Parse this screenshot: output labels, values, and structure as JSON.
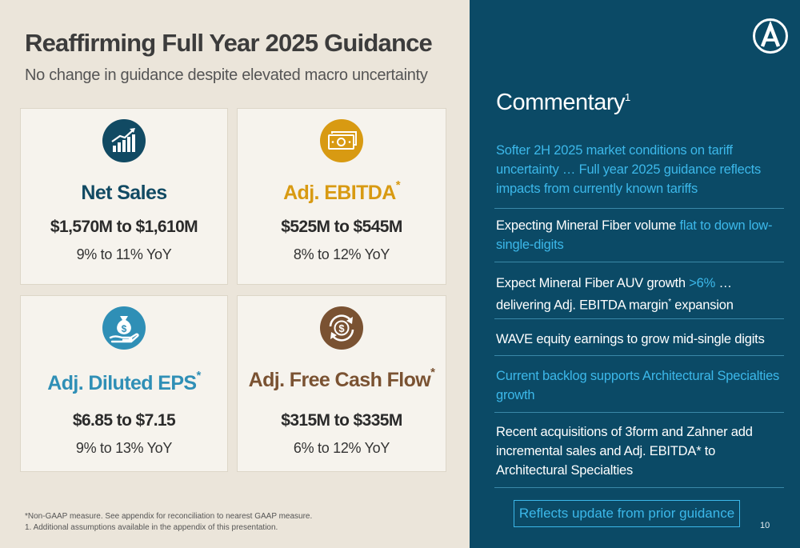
{
  "header": {
    "title": "Reaffirming Full Year 2025 Guidance",
    "subtitle": "No change in guidance despite elevated macro uncertainty"
  },
  "cards": [
    {
      "label": "Net Sales",
      "marker": "",
      "value": "$1,570M to $1,610M",
      "yoy": "9% to 11% YoY",
      "icon": "growth-chart-icon",
      "color": "#114a63"
    },
    {
      "label": "Adj. EBITDA",
      "marker": "*",
      "value": "$525M to $545M",
      "yoy": "8% to 12% YoY",
      "icon": "cash-stack-icon",
      "color": "#d89a12"
    },
    {
      "label": "Adj. Diluted EPS",
      "marker": "*",
      "value": "$6.85 to $7.15",
      "yoy": "9% to 13% YoY",
      "icon": "money-bag-hand-icon",
      "color": "#2f8fb6"
    },
    {
      "label": "Adj. Free Cash Flow",
      "marker": "*",
      "value": "$315M to $335M",
      "yoy": "6% to 12% YoY",
      "icon": "dollar-cycle-icon",
      "color": "#7a5232"
    }
  ],
  "footnotes": [
    "*Non-GAAP measure. See appendix for reconciliation to nearest GAAP measure.",
    "1. Additional assumptions available in the appendix of this presentation."
  ],
  "commentary": {
    "title": "Commentary",
    "title_marker": "1",
    "bullets": [
      {
        "parts": [
          {
            "text": "Softer 2H 2025 market conditions on tariff uncertainty … Full year 2025 guidance reflects impacts from currently known tariffs",
            "hl": true
          }
        ]
      },
      {
        "parts": [
          {
            "text": "Expecting Mineral Fiber volume ",
            "hl": false
          },
          {
            "text": "flat to down low-single-digits",
            "hl": true
          }
        ]
      },
      {
        "parts": [
          {
            "text": "Expect Mineral Fiber AUV growth ",
            "hl": false
          },
          {
            "text": ">6%",
            "hl": true
          },
          {
            "text": " … delivering Adj. EBITDA margin",
            "hl": false
          },
          {
            "text": "*",
            "hl": false,
            "sup": true
          },
          {
            "text": " expansion",
            "hl": false
          }
        ]
      },
      {
        "parts": [
          {
            "text": "WAVE equity earnings to grow mid-single digits",
            "hl": false
          }
        ]
      },
      {
        "parts": [
          {
            "text": "Current backlog supports Architectural Specialties growth",
            "hl": true
          }
        ]
      },
      {
        "parts": [
          {
            "text": "Recent acquisitions of 3form and Zahner add incremental sales and Adj. EBITDA* to Architectural Specialties",
            "hl": false
          }
        ]
      }
    ],
    "update_label": "Reflects update from prior guidance"
  },
  "page_number": "10",
  "colors": {
    "accent_blue": "#3cb8ea",
    "panel_navy": "#0b4a66",
    "background_beige": "#ebe5da"
  }
}
